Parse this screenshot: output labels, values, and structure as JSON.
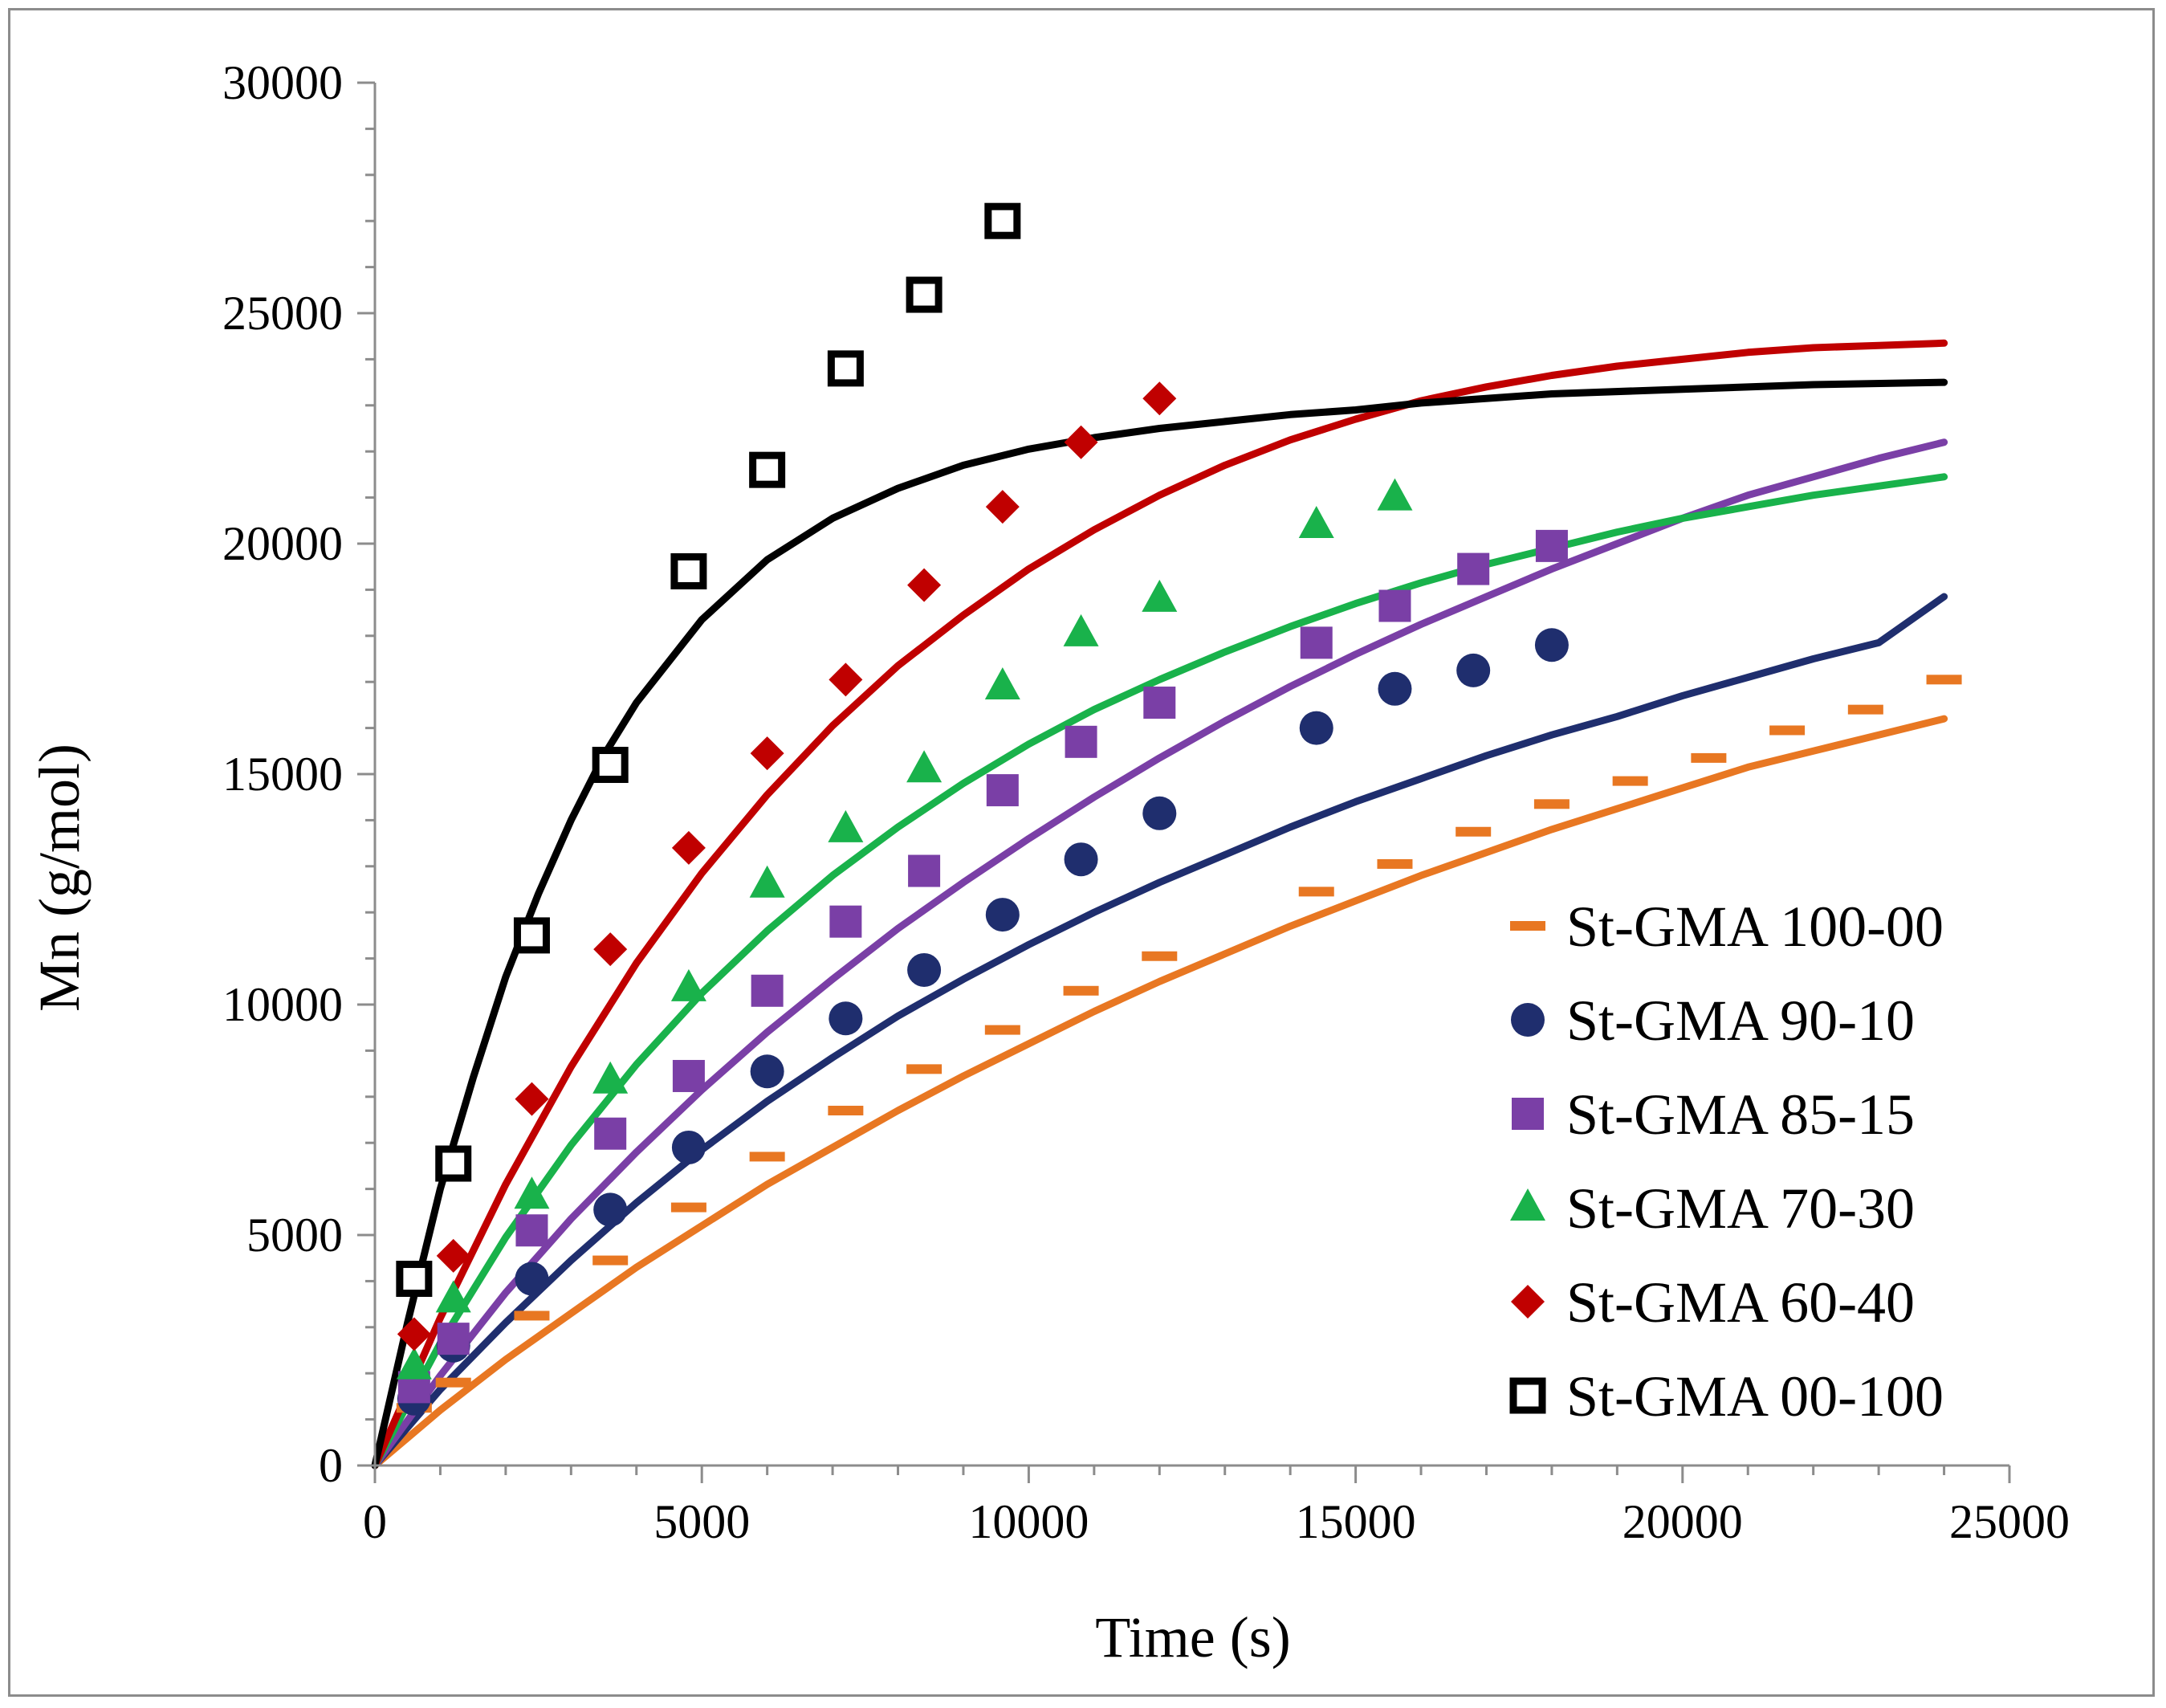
{
  "chart_data": {
    "type": "scatter",
    "title": "",
    "xlabel": "Time (s)",
    "ylabel": "Mn (g/mol)",
    "xlim": [
      0,
      25000
    ],
    "ylim": [
      0,
      30000
    ],
    "x_ticks": [
      "0",
      "5000",
      "10000",
      "15000",
      "20000",
      "25000"
    ],
    "y_ticks": [
      "0",
      "5000",
      "10000",
      "15000",
      "20000",
      "25000",
      "30000"
    ],
    "grid": false,
    "legend_position": "bottom-right",
    "series": [
      {
        "name": "St-GMA 100-00",
        "marker": "dash",
        "color": "#e87722",
        "points": [
          [
            600,
            1250
          ],
          [
            1200,
            1800
          ],
          [
            2400,
            3250
          ],
          [
            3600,
            4450
          ],
          [
            4800,
            5600
          ],
          [
            6000,
            6700
          ],
          [
            7200,
            7700
          ],
          [
            8400,
            8600
          ],
          [
            9600,
            9450
          ],
          [
            10800,
            10300
          ],
          [
            12000,
            11050
          ],
          [
            14400,
            12450
          ],
          [
            15600,
            13050
          ],
          [
            16800,
            13750
          ],
          [
            18000,
            14350
          ],
          [
            19200,
            14850
          ],
          [
            20400,
            15350
          ],
          [
            21600,
            15950
          ],
          [
            22800,
            16400
          ],
          [
            24000,
            17050
          ]
        ],
        "fit": [
          [
            0,
            0
          ],
          [
            1000,
            1200
          ],
          [
            2000,
            2300
          ],
          [
            3000,
            3300
          ],
          [
            4000,
            4300
          ],
          [
            5000,
            5200
          ],
          [
            6000,
            6100
          ],
          [
            7000,
            6900
          ],
          [
            8000,
            7700
          ],
          [
            9000,
            8450
          ],
          [
            10000,
            9150
          ],
          [
            11000,
            9850
          ],
          [
            12000,
            10500
          ],
          [
            13000,
            11100
          ],
          [
            14000,
            11700
          ],
          [
            15000,
            12250
          ],
          [
            16000,
            12800
          ],
          [
            17000,
            13300
          ],
          [
            18000,
            13800
          ],
          [
            19000,
            14250
          ],
          [
            20000,
            14700
          ],
          [
            21000,
            15150
          ],
          [
            22000,
            15500
          ],
          [
            23000,
            15850
          ],
          [
            24000,
            16200
          ]
        ]
      },
      {
        "name": "St-GMA 90-10",
        "marker": "circle",
        "color": "#1f2e6e",
        "points": [
          [
            600,
            1450
          ],
          [
            1200,
            2600
          ],
          [
            2400,
            4050
          ],
          [
            3600,
            5550
          ],
          [
            4800,
            6900
          ],
          [
            6000,
            8550
          ],
          [
            7200,
            9700
          ],
          [
            8400,
            10750
          ],
          [
            9600,
            11950
          ],
          [
            10800,
            13150
          ],
          [
            12000,
            14150
          ],
          [
            14400,
            16000
          ],
          [
            15600,
            16850
          ],
          [
            16800,
            17250
          ],
          [
            18000,
            17800
          ]
        ],
        "fit": [
          [
            0,
            0
          ],
          [
            1000,
            1650
          ],
          [
            2000,
            3100
          ],
          [
            3000,
            4450
          ],
          [
            4000,
            5700
          ],
          [
            5000,
            6850
          ],
          [
            6000,
            7900
          ],
          [
            7000,
            8850
          ],
          [
            8000,
            9750
          ],
          [
            9000,
            10550
          ],
          [
            10000,
            11300
          ],
          [
            11000,
            12000
          ],
          [
            12000,
            12650
          ],
          [
            13000,
            13250
          ],
          [
            14000,
            13850
          ],
          [
            15000,
            14400
          ],
          [
            16000,
            14900
          ],
          [
            17000,
            15400
          ],
          [
            18000,
            15850
          ],
          [
            19000,
            16250
          ],
          [
            20000,
            16700
          ],
          [
            21000,
            17100
          ],
          [
            22000,
            17500
          ],
          [
            23000,
            17850
          ],
          [
            24000,
            18850
          ]
        ]
      },
      {
        "name": "St-GMA 85-15",
        "marker": "square",
        "color": "#7a3fa6",
        "points": [
          [
            600,
            1700
          ],
          [
            1200,
            2750
          ],
          [
            2400,
            5100
          ],
          [
            3600,
            7200
          ],
          [
            4800,
            8450
          ],
          [
            6000,
            10300
          ],
          [
            7200,
            11800
          ],
          [
            8400,
            12900
          ],
          [
            9600,
            14650
          ],
          [
            10800,
            15700
          ],
          [
            12000,
            16550
          ],
          [
            14400,
            17850
          ],
          [
            15600,
            18650
          ],
          [
            16800,
            19450
          ],
          [
            18000,
            19950
          ]
        ],
        "fit": [
          [
            0,
            0
          ],
          [
            1000,
            1950
          ],
          [
            2000,
            3750
          ],
          [
            3000,
            5350
          ],
          [
            4000,
            6800
          ],
          [
            5000,
            8150
          ],
          [
            6000,
            9400
          ],
          [
            7000,
            10550
          ],
          [
            8000,
            11650
          ],
          [
            9000,
            12650
          ],
          [
            10000,
            13600
          ],
          [
            11000,
            14500
          ],
          [
            12000,
            15350
          ],
          [
            13000,
            16150
          ],
          [
            14000,
            16900
          ],
          [
            15000,
            17600
          ],
          [
            16000,
            18250
          ],
          [
            17000,
            18850
          ],
          [
            18000,
            19450
          ],
          [
            19000,
            20000
          ],
          [
            20000,
            20550
          ],
          [
            21000,
            21050
          ],
          [
            22000,
            21450
          ],
          [
            23000,
            21850
          ],
          [
            24000,
            22200
          ]
        ]
      },
      {
        "name": "St-GMA 70-30",
        "marker": "triangle",
        "color": "#19b24b",
        "points": [
          [
            600,
            2150
          ],
          [
            1200,
            3600
          ],
          [
            2400,
            5850
          ],
          [
            3600,
            8350
          ],
          [
            4800,
            10350
          ],
          [
            6000,
            12600
          ],
          [
            7200,
            13800
          ],
          [
            8400,
            15100
          ],
          [
            9600,
            16900
          ],
          [
            10800,
            18050
          ],
          [
            12000,
            18800
          ],
          [
            14400,
            20400
          ],
          [
            15600,
            21000
          ]
        ],
        "fit": [
          [
            0,
            0
          ],
          [
            1000,
            2650
          ],
          [
            2000,
            4950
          ],
          [
            3000,
            6950
          ],
          [
            4000,
            8700
          ],
          [
            5000,
            10250
          ],
          [
            6000,
            11600
          ],
          [
            7000,
            12800
          ],
          [
            8000,
            13850
          ],
          [
            9000,
            14800
          ],
          [
            10000,
            15650
          ],
          [
            11000,
            16400
          ],
          [
            12000,
            17050
          ],
          [
            13000,
            17650
          ],
          [
            14000,
            18200
          ],
          [
            15000,
            18700
          ],
          [
            16000,
            19150
          ],
          [
            17000,
            19550
          ],
          [
            18000,
            19900
          ],
          [
            19000,
            20250
          ],
          [
            20000,
            20550
          ],
          [
            21000,
            20800
          ],
          [
            22000,
            21050
          ],
          [
            23000,
            21250
          ],
          [
            24000,
            21450
          ]
        ]
      },
      {
        "name": "St-GMA 60-40",
        "marker": "diamond",
        "color": "#c00000",
        "points": [
          [
            600,
            2850
          ],
          [
            1200,
            4550
          ],
          [
            2400,
            7950
          ],
          [
            3600,
            11200
          ],
          [
            4800,
            13400
          ],
          [
            6000,
            15450
          ],
          [
            7200,
            17050
          ],
          [
            8400,
            19100
          ],
          [
            9600,
            20800
          ],
          [
            10800,
            22200
          ],
          [
            12000,
            23150
          ]
        ],
        "fit": [
          [
            0,
            0
          ],
          [
            1000,
            3200
          ],
          [
            2000,
            6100
          ],
          [
            3000,
            8650
          ],
          [
            4000,
            10900
          ],
          [
            5000,
            12850
          ],
          [
            6000,
            14550
          ],
          [
            7000,
            16050
          ],
          [
            8000,
            17350
          ],
          [
            9000,
            18450
          ],
          [
            10000,
            19450
          ],
          [
            11000,
            20300
          ],
          [
            12000,
            21050
          ],
          [
            13000,
            21700
          ],
          [
            14000,
            22250
          ],
          [
            15000,
            22700
          ],
          [
            16000,
            23100
          ],
          [
            17000,
            23400
          ],
          [
            18000,
            23650
          ],
          [
            19000,
            23850
          ],
          [
            20000,
            24000
          ],
          [
            21000,
            24150
          ],
          [
            22000,
            24250
          ],
          [
            23000,
            24300
          ],
          [
            24000,
            24350
          ]
        ]
      },
      {
        "name": "St-GMA 00-100",
        "marker": "open-square",
        "color": "#000000",
        "points": [
          [
            600,
            4050
          ],
          [
            1200,
            6550
          ],
          [
            2400,
            11500
          ],
          [
            3600,
            15200
          ],
          [
            4800,
            19400
          ],
          [
            6000,
            21600
          ],
          [
            7200,
            23800
          ],
          [
            8400,
            25400
          ],
          [
            9600,
            27000
          ]
        ],
        "fit": [
          [
            0,
            0
          ],
          [
            500,
            3100
          ],
          [
            1000,
            6000
          ],
          [
            1500,
            8400
          ],
          [
            2000,
            10600
          ],
          [
            2500,
            12400
          ],
          [
            3000,
            14000
          ],
          [
            3500,
            15400
          ],
          [
            4000,
            16550
          ],
          [
            5000,
            18350
          ],
          [
            6000,
            19650
          ],
          [
            7000,
            20550
          ],
          [
            8000,
            21200
          ],
          [
            9000,
            21700
          ],
          [
            10000,
            22050
          ],
          [
            11000,
            22300
          ],
          [
            12000,
            22500
          ],
          [
            13000,
            22650
          ],
          [
            14000,
            22800
          ],
          [
            15000,
            22900
          ],
          [
            16000,
            23050
          ],
          [
            18000,
            23250
          ],
          [
            20000,
            23350
          ],
          [
            22000,
            23450
          ],
          [
            24000,
            23500
          ]
        ]
      }
    ]
  }
}
